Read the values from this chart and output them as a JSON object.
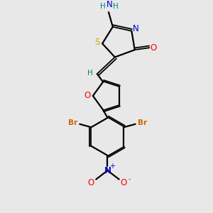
{
  "background_color": "#e8e8e8",
  "atom_colors": {
    "C": "#000000",
    "N": "#0000cd",
    "O": "#ff0000",
    "S": "#ccaa00",
    "Br": "#cc6600",
    "H": "#008080"
  },
  "bond_color": "#000000"
}
